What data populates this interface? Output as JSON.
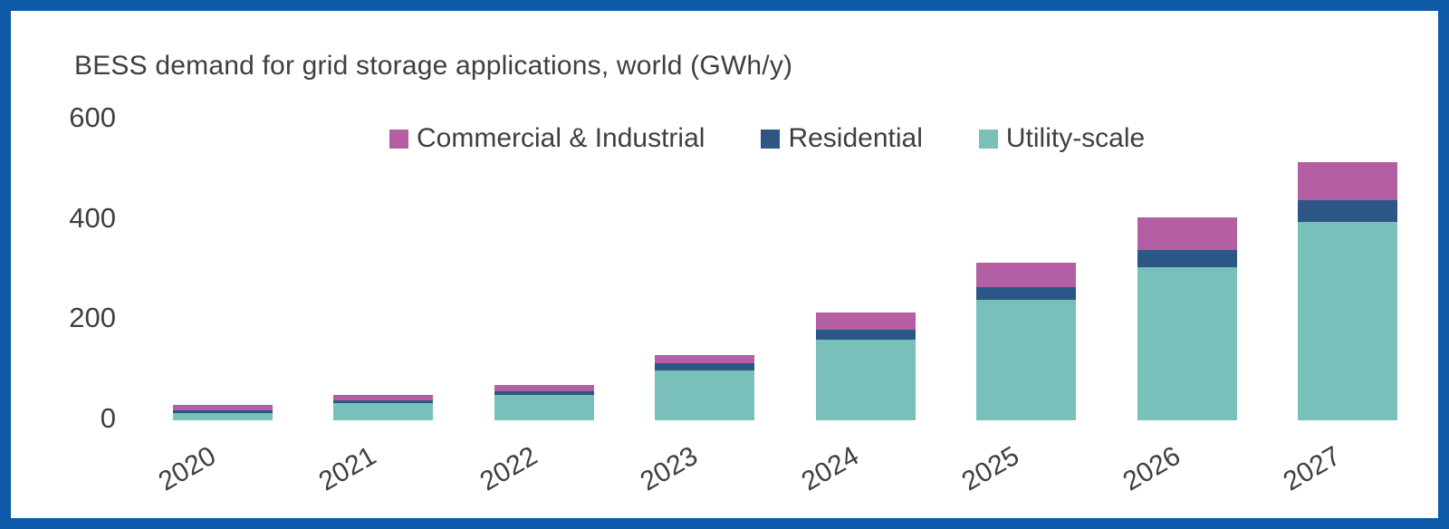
{
  "frame": {
    "border_color": "#0e59a8",
    "background_color": "#ffffff",
    "text_color": "#3f3f3f"
  },
  "chart_data": {
    "type": "bar",
    "stacked": true,
    "title": "BESS demand for grid storage applications, world (GWh/y)",
    "xlabel": "",
    "ylabel": "",
    "ylim": [
      0,
      600
    ],
    "yticks": [
      0,
      200,
      400,
      600
    ],
    "grid": false,
    "legend_position": "top",
    "categories": [
      "2020",
      "2021",
      "2022",
      "2023",
      "2024",
      "2025",
      "2026",
      "2027"
    ],
    "series": [
      {
        "name": "Commercial & Industrial",
        "color": "#b45fa4",
        "values": [
          10,
          10,
          12,
          17,
          35,
          50,
          65,
          75
        ]
      },
      {
        "name": "Residential",
        "color": "#2b5685",
        "values": [
          5,
          5,
          8,
          13,
          20,
          25,
          35,
          45
        ]
      },
      {
        "name": "Utility-scale",
        "color": "#79c0ba",
        "values": [
          15,
          35,
          50,
          100,
          160,
          240,
          305,
          395
        ]
      }
    ],
    "stack_order_bottom_to_top": [
      "Utility-scale",
      "Residential",
      "Commercial & Industrial"
    ]
  }
}
